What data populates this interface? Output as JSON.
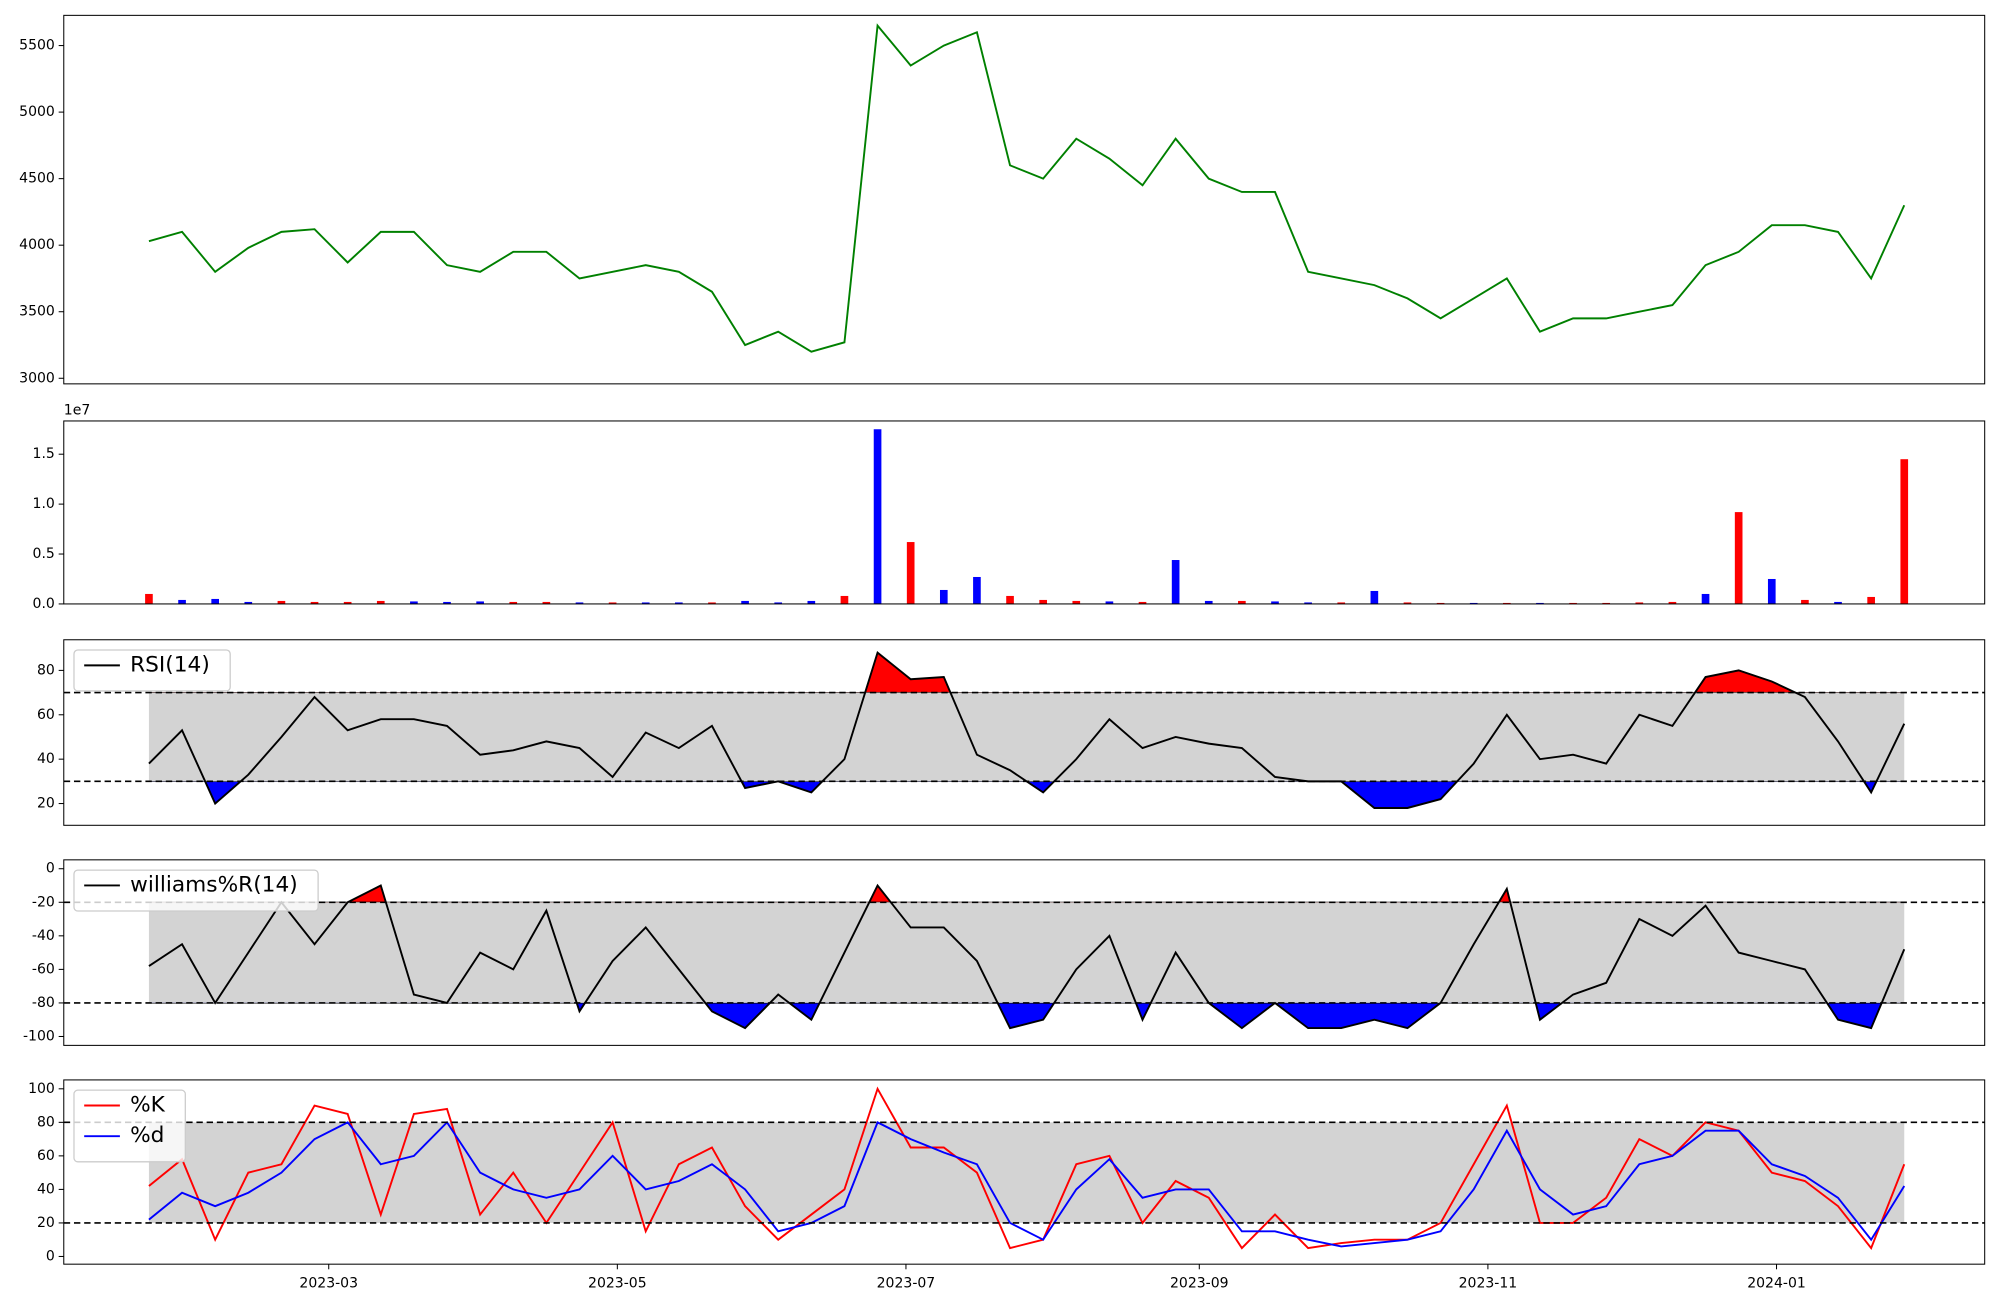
{
  "chart_data": [
    {
      "type": "line",
      "series": [
        {
          "color": "green",
          "values": [
            4030,
            4100,
            3800,
            3980,
            4100,
            4120,
            3870,
            4100,
            4100,
            3850,
            3800,
            3950,
            3950,
            3750,
            3800,
            3850,
            3800,
            3650,
            3250,
            3350,
            3200,
            3270,
            5650,
            5350,
            5500,
            5600,
            4600,
            4500,
            4800,
            4650,
            4450,
            4800,
            4500,
            4400,
            4400,
            3800,
            3750,
            3700,
            3600,
            3450,
            3600,
            3750,
            3350,
            3450,
            3450,
            3500,
            3550,
            3850,
            3950,
            4150,
            4150,
            4100,
            3750,
            4300
          ]
        }
      ],
      "ylim": [
        2958,
        5727
      ],
      "yticks": [
        3000,
        3500,
        4000,
        4500,
        5000,
        5500
      ]
    },
    {
      "type": "bar",
      "offset_label": "1e7",
      "values": [
        1000000,
        400000,
        500000,
        200000,
        300000,
        200000,
        200000,
        300000,
        250000,
        200000,
        250000,
        200000,
        200000,
        150000,
        150000,
        150000,
        150000,
        150000,
        300000,
        150000,
        300000,
        800000,
        17500000,
        6200000,
        1400000,
        2700000,
        800000,
        400000,
        300000,
        250000,
        200000,
        4400000,
        300000,
        300000,
        250000,
        150000,
        150000,
        1300000,
        150000,
        100000,
        100000,
        100000,
        100000,
        100000,
        100000,
        150000,
        200000,
        1000000,
        9200000,
        2500000,
        400000,
        200000,
        700000,
        14500000
      ],
      "colors": [
        "red",
        "blue",
        "blue",
        "blue",
        "red",
        "red",
        "red",
        "red",
        "blue",
        "blue",
        "blue",
        "red",
        "red",
        "blue",
        "red",
        "blue",
        "blue",
        "red",
        "blue",
        "blue",
        "blue",
        "red",
        "blue",
        "red",
        "blue",
        "blue",
        "red",
        "red",
        "red",
        "blue",
        "red",
        "blue",
        "blue",
        "red",
        "blue",
        "blue",
        "red",
        "blue",
        "red",
        "red",
        "blue",
        "red",
        "blue",
        "red",
        "red",
        "red",
        "red",
        "blue",
        "red",
        "blue",
        "red",
        "blue",
        "red",
        "red"
      ],
      "ylim": [
        0,
        18330000
      ],
      "yticks": [
        {
          "value": 0,
          "label": "0.0"
        },
        {
          "value": 5000000,
          "label": "0.5"
        },
        {
          "value": 10000000,
          "label": "1.0"
        },
        {
          "value": 15000000,
          "label": "1.5"
        }
      ]
    },
    {
      "type": "line",
      "series": [
        {
          "name": "RSI(14)",
          "color": "black",
          "values": [
            38,
            53,
            20,
            33,
            50,
            68,
            53,
            58,
            58,
            55,
            42,
            44,
            48,
            45,
            32,
            52,
            45,
            55,
            27,
            30,
            25,
            40,
            88,
            76,
            77,
            42,
            35,
            25,
            40,
            58,
            45,
            50,
            47,
            45,
            32,
            30,
            30,
            18,
            18,
            22,
            38,
            60,
            40,
            42,
            38,
            60,
            55,
            77,
            80,
            75,
            68,
            48,
            25,
            56
          ]
        }
      ],
      "upper": 70,
      "lower": 30,
      "band_color": "lightgray",
      "upper_fill": "red",
      "lower_fill": "blue",
      "ylim": [
        10.2,
        93.8
      ],
      "yticks": [
        20,
        40,
        60,
        80
      ]
    },
    {
      "type": "line",
      "series": [
        {
          "name": "williams%R(14)",
          "color": "black",
          "values": [
            -58,
            -45,
            -80,
            -50,
            -20,
            -45,
            -20,
            -10,
            -75,
            -80,
            -50,
            -60,
            -25,
            -85,
            -55,
            -35,
            -60,
            -85,
            -95,
            -75,
            -90,
            -50,
            -10,
            -35,
            -35,
            -55,
            -95,
            -90,
            -60,
            -40,
            -90,
            -50,
            -80,
            -95,
            -80,
            -95,
            -95,
            -90,
            -95,
            -80,
            -45,
            -12,
            -90,
            -75,
            -68,
            -30,
            -40,
            -22,
            -50,
            -55,
            -60,
            -90,
            -95,
            -48
          ]
        }
      ],
      "upper": -20,
      "lower": -80,
      "band_color": "lightgray",
      "upper_fill": "red",
      "lower_fill": "blue",
      "ylim": [
        -105.3,
        5.3
      ],
      "yticks": [
        0,
        -20,
        -40,
        -60,
        -80,
        -100
      ]
    },
    {
      "type": "line",
      "x": [
        19379,
        19386,
        19393,
        19400,
        19407,
        19414,
        19421,
        19428,
        19435,
        19442,
        19449,
        19456,
        19463,
        19470,
        19477,
        19484,
        19491,
        19498,
        19505,
        19512,
        19519,
        19526,
        19533,
        19540,
        19547,
        19554,
        19561,
        19568,
        19575,
        19582,
        19589,
        19596,
        19603,
        19610,
        19617,
        19624,
        19631,
        19638,
        19645,
        19652,
        19659,
        19666,
        19673,
        19680,
        19687,
        19694,
        19701,
        19708,
        19715,
        19722,
        19729,
        19736,
        19743,
        19750
      ],
      "series": [
        {
          "name": "%K",
          "color": "red",
          "values": [
            42,
            58,
            10,
            50,
            55,
            90,
            85,
            25,
            85,
            88,
            25,
            50,
            20,
            50,
            80,
            15,
            55,
            65,
            30,
            10,
            25,
            40,
            100,
            65,
            65,
            50,
            5,
            10,
            55,
            60,
            20,
            45,
            35,
            5,
            25,
            5,
            8,
            10,
            10,
            20,
            55,
            90,
            20,
            20,
            35,
            70,
            60,
            80,
            75,
            50,
            45,
            30,
            5,
            55
          ]
        },
        {
          "name": "%d",
          "color": "blue",
          "values": [
            22,
            38,
            30,
            38,
            50,
            70,
            80,
            55,
            60,
            80,
            50,
            40,
            35,
            40,
            60,
            40,
            45,
            55,
            40,
            15,
            20,
            30,
            80,
            70,
            62,
            55,
            20,
            10,
            40,
            58,
            35,
            40,
            40,
            15,
            15,
            10,
            6,
            8,
            10,
            15,
            40,
            75,
            40,
            25,
            30,
            55,
            60,
            75,
            75,
            55,
            48,
            35,
            10,
            42
          ]
        }
      ],
      "upper": 80,
      "lower": 20,
      "band_color": "lightgray",
      "ylim": [
        -4.6,
        105.3
      ],
      "yticks": [
        0,
        20,
        40,
        60,
        80,
        100
      ],
      "xlim": [
        19361,
        19767
      ],
      "xticks": [
        {
          "value": 19417,
          "label": "2023-03"
        },
        {
          "value": 19478,
          "label": "2023-05"
        },
        {
          "value": 19539,
          "label": "2023-07"
        },
        {
          "value": 19601,
          "label": "2023-09"
        },
        {
          "value": 19662,
          "label": "2023-11"
        },
        {
          "value": 19723,
          "label": "2024-01"
        }
      ]
    }
  ]
}
